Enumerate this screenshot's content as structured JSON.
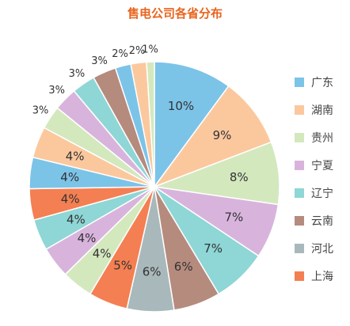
{
  "chart_data": {
    "type": "pie",
    "title": "售电公司各省分布",
    "slices": [
      {
        "label": "10%",
        "value": 10,
        "color": "#7cc3e8",
        "legend": "广东"
      },
      {
        "label": "9%",
        "value": 9,
        "color": "#fbc89e",
        "legend": "湖南"
      },
      {
        "label": "8%",
        "value": 8,
        "color": "#d4e8be",
        "legend": "贵州"
      },
      {
        "label": "7%",
        "value": 7,
        "color": "#d8b4dd",
        "legend": "宁夏"
      },
      {
        "label": "7%",
        "value": 7,
        "color": "#8fd6d6",
        "legend": "辽宁"
      },
      {
        "label": "6%",
        "value": 6,
        "color": "#b58b7d",
        "legend": "云南"
      },
      {
        "label": "6%",
        "value": 6,
        "color": "#a9b8bb",
        "legend": "河北"
      },
      {
        "label": "5%",
        "value": 5,
        "color": "#f47f52",
        "legend": "上海"
      },
      {
        "label": "4%",
        "value": 4,
        "color": "#d4e8be"
      },
      {
        "label": "4%",
        "value": 4,
        "color": "#d8b4dd"
      },
      {
        "label": "4%",
        "value": 4,
        "color": "#8fd6d6"
      },
      {
        "label": "4%",
        "value": 4,
        "color": "#f47f52"
      },
      {
        "label": "4%",
        "value": 4,
        "color": "#7cc3e8"
      },
      {
        "label": "4%",
        "value": 4,
        "color": "#fbc89e"
      },
      {
        "label": "3%",
        "value": 3,
        "color": "#d4e8be"
      },
      {
        "label": "3%",
        "value": 3,
        "color": "#d8b4dd"
      },
      {
        "label": "3%",
        "value": 3,
        "color": "#8fd6d6"
      },
      {
        "label": "3%",
        "value": 3,
        "color": "#b58b7d"
      },
      {
        "label": "2%",
        "value": 2,
        "color": "#7cc3e8"
      },
      {
        "label": "2%",
        "value": 2,
        "color": "#fbc89e"
      },
      {
        "label": "1%",
        "value": 1,
        "color": "#d4e8be"
      }
    ],
    "legend_position": "right"
  }
}
